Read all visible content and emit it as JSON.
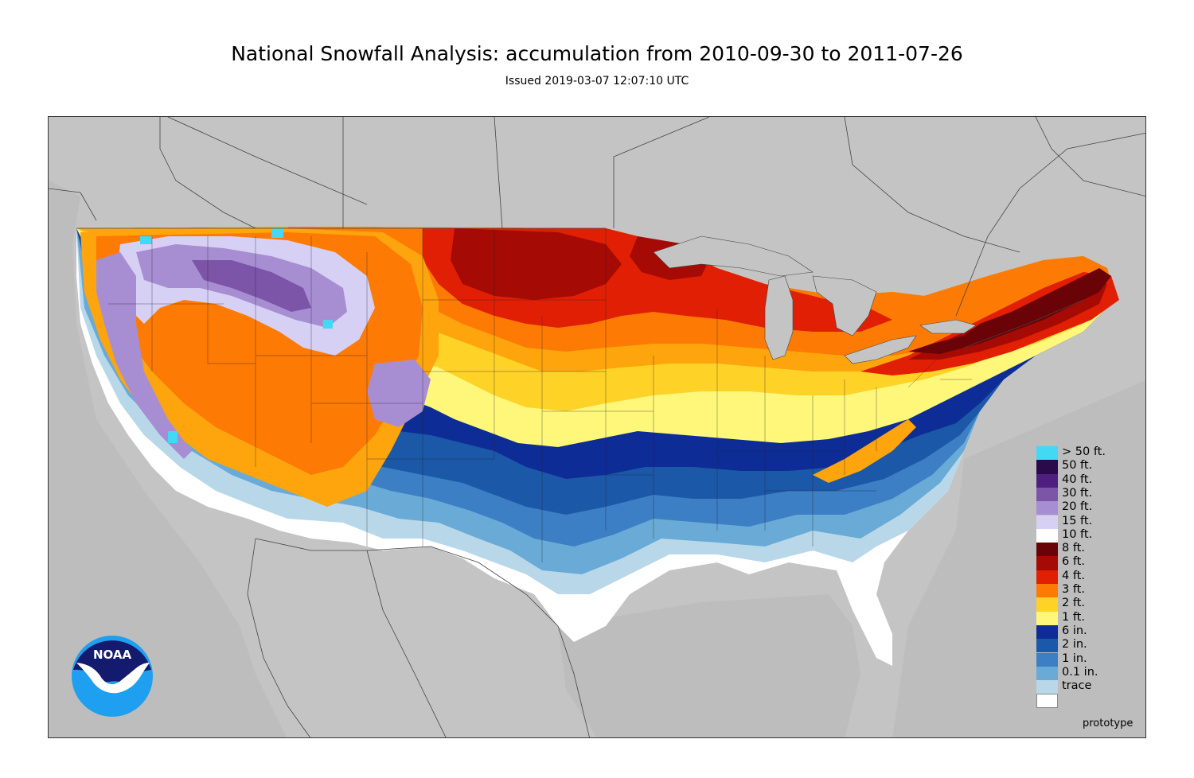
{
  "title": "National Snowfall Analysis: accumulation from 2010-09-30 to 2011-07-26",
  "subtitle": "Issued 2019-03-07 12:07:10 UTC",
  "logo_text": "NOAA",
  "footer_note": "prototype",
  "colors": {
    "land_background": "#c4c4c4",
    "border_line": "#444444",
    "trace": "#ffffff",
    "0.1in": "#b8d8ea",
    "1in": "#6aaad6",
    "2in": "#3c7fc4",
    "6in": "#1c58a8",
    "1ft": "#0e2c96",
    "2ft": "#fff77a",
    "3ft": "#ffd227",
    "4ft": "#fea40d",
    "6ft": "#fd7a04",
    "8ft": "#e11f05",
    "10ft": "#a60a05",
    "15ft": "#6a0307",
    "20ft": "#d6d0f4",
    "30ft": "#a78ed2",
    "40ft": "#7c55a8",
    "50ft": "#4f1f80",
    "over50ft": "#43d8f4",
    "noaa_blue": "#1f9ff0",
    "noaa_navy": "#141a6e"
  },
  "legend": [
    {
      "label": "> 50 ft.",
      "color": "#43d8f4"
    },
    {
      "label": "50 ft.",
      "color": "#2a0a4a"
    },
    {
      "label": "40 ft.",
      "color": "#4f1f80"
    },
    {
      "label": "30 ft.",
      "color": "#7c55a8"
    },
    {
      "label": "20 ft.",
      "color": "#a78ed2"
    },
    {
      "label": "15 ft.",
      "color": "#d6d0f4"
    },
    {
      "label": "10 ft.",
      "color": "#ffffff"
    },
    {
      "label": "8 ft.",
      "color": "#6a0307"
    },
    {
      "label": "6 ft.",
      "color": "#a60a05"
    },
    {
      "label": "4 ft.",
      "color": "#e11f05"
    },
    {
      "label": "3 ft.",
      "color": "#fd7a04"
    },
    {
      "label": "2 ft.",
      "color": "#ffd227"
    },
    {
      "label": "1 ft.",
      "color": "#fff77a"
    },
    {
      "label": "6 in.",
      "color": "#0e2c96"
    },
    {
      "label": "2 in.",
      "color": "#1c58a8"
    },
    {
      "label": "1 in.",
      "color": "#3c7fc4"
    },
    {
      "label": "0.1 in.",
      "color": "#6aaad6"
    },
    {
      "label": "trace",
      "color": "#b8d8ea"
    },
    {
      "label": "",
      "color": "#ffffff"
    }
  ],
  "map_regions": [
    {
      "name": "southern-trace-zone",
      "level": "trace"
    },
    {
      "name": "southern-light-zone",
      "level": "0.1in"
    },
    {
      "name": "southwest-light-zone",
      "level": "1in"
    },
    {
      "name": "southern-2in-zone",
      "level": "2in"
    },
    {
      "name": "southern-6in-zone",
      "level": "6in"
    },
    {
      "name": "mid-south-1ft-zone",
      "level": "1ft"
    },
    {
      "name": "central-2ft-zone",
      "level": "2ft"
    },
    {
      "name": "central-3ft-zone",
      "level": "3ft"
    },
    {
      "name": "central-4ft-zone",
      "level": "4ft"
    },
    {
      "name": "northern-6ft-zone",
      "level": "6ft"
    },
    {
      "name": "northern-8ft-zone",
      "level": "8ft"
    },
    {
      "name": "upper-midwest-10ft-zone",
      "level": "10ft"
    },
    {
      "name": "rockies-high-zone",
      "level": "20ft"
    },
    {
      "name": "rockies-peak-zone",
      "level": "40ft"
    },
    {
      "name": "northeast-8ft-zone",
      "level": "8ft"
    },
    {
      "name": "northeast-10ft-zone",
      "level": "10ft"
    },
    {
      "name": "northeast-high-zone",
      "level": "15ft"
    }
  ]
}
